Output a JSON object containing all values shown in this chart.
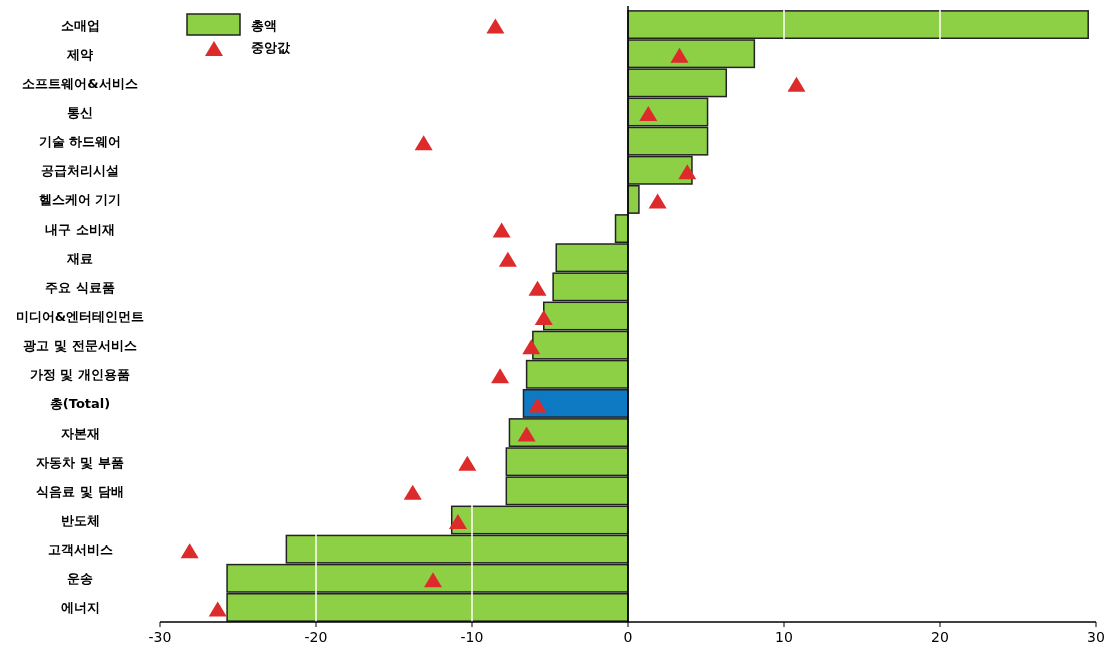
{
  "chart_data": {
    "type": "bar",
    "orientation": "horizontal",
    "categories": [
      "소매업",
      "제약",
      "소프트웨어&서비스",
      "통신",
      "기술 하드웨어",
      "공급처리시설",
      "헬스케어 기기",
      "내구 소비재",
      "재료",
      "주요 식료품",
      "미디어&엔터테인먼트",
      "광고 및 전문서비스",
      "가정 및 개인용품",
      "총(Total)",
      "자본재",
      "자동차 및 부품",
      "식음료 및 담배",
      "반도체",
      "고객서비스",
      "운송",
      "에너지"
    ],
    "series": [
      {
        "name": "총액",
        "color": "#8ed045",
        "colors": [
          "#8ed045",
          "#8ed045",
          "#8ed045",
          "#8ed045",
          "#8ed045",
          "#8ed045",
          "#8ed045",
          "#8ed045",
          "#8ed045",
          "#8ed045",
          "#8ed045",
          "#8ed045",
          "#8ed045",
          "#0f7ac4",
          "#8ed045",
          "#8ed045",
          "#8ed045",
          "#8ed045",
          "#8ed045",
          "#8ed045",
          "#8ed045"
        ],
        "values": [
          29.5,
          8.1,
          6.3,
          5.1,
          5.1,
          4.1,
          0.7,
          -0.8,
          -4.6,
          -4.8,
          -5.4,
          -6.1,
          -6.5,
          -6.7,
          -7.6,
          -7.8,
          -7.8,
          -11.3,
          -21.9,
          -25.7,
          -25.7
        ]
      },
      {
        "name": "중앙값",
        "type": "scatter",
        "marker": "triangle",
        "color": "#dd2a2a",
        "values": [
          -8.5,
          3.3,
          10.8,
          1.3,
          -13.1,
          3.8,
          1.9,
          -8.1,
          -7.7,
          -5.8,
          -5.4,
          -6.2,
          -8.2,
          -5.8,
          -6.5,
          -10.3,
          -13.8,
          -10.9,
          -28.1,
          -12.5,
          -26.3
        ]
      }
    ],
    "xlim": [
      -30,
      30
    ],
    "xticks": [
      -30,
      -20,
      -10,
      0,
      10,
      20,
      30
    ],
    "grid": "x",
    "legend": "top left"
  }
}
